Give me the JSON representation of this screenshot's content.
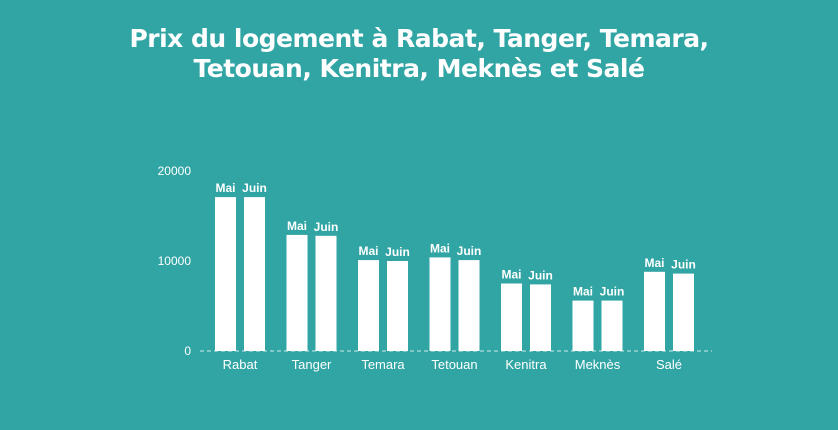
{
  "chart_data": {
    "type": "bar",
    "title_lines": [
      "Prix du logement à Rabat, Tanger, Temara,",
      "Tetouan, Kenitra, Meknès et Salé"
    ],
    "categories": [
      "Rabat",
      "Tanger",
      "Temara",
      "Tetouan",
      "Kenitra",
      "Meknès",
      "Salé"
    ],
    "series": [
      {
        "name": "Mai",
        "values": [
          17100,
          12900,
          10100,
          10400,
          7500,
          5600,
          8800
        ]
      },
      {
        "name": "Juin",
        "values": [
          17100,
          12800,
          10000,
          10100,
          7400,
          5600,
          8600
        ]
      }
    ],
    "yticks": [
      0,
      10000,
      20000
    ],
    "ylim": [
      0,
      20000
    ],
    "colors": {
      "background": "#31a4a4",
      "bar": "#ffffff",
      "baseline": "#cfeaea"
    }
  }
}
